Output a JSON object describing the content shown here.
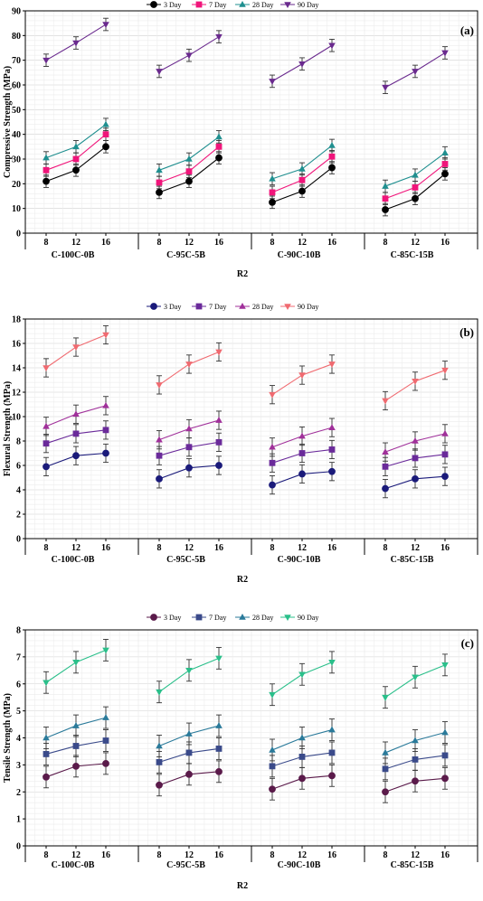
{
  "chart_data": [
    {
      "type": "line",
      "panel_label": "(a)",
      "ylabel": "Compressive Strength (MPa)",
      "xlabel": "R2",
      "ylim": [
        0,
        90
      ],
      "yticks": [
        "0",
        "10",
        "20",
        "30",
        "40",
        "50",
        "60",
        "70",
        "80",
        "90"
      ],
      "grid": true,
      "legend_position": "top-center",
      "groups": [
        {
          "name": "C-100C-0B",
          "ticks": [
            "8",
            "12",
            "16"
          ]
        },
        {
          "name": "C-95C-5B",
          "ticks": [
            "8",
            "12",
            "16"
          ]
        },
        {
          "name": "C-90C-10B",
          "ticks": [
            "8",
            "12",
            "16"
          ]
        },
        {
          "name": "C-85C-15B",
          "ticks": [
            "8",
            "12",
            "16"
          ]
        }
      ],
      "series": [
        {
          "name": "3 Day",
          "marker": "circle",
          "color": "#000000",
          "values": [
            [
              21,
              25.5,
              35
            ],
            [
              16.5,
              21,
              30.5
            ],
            [
              12.5,
              17,
              26.5
            ],
            [
              9.5,
              14,
              24
            ]
          ]
        },
        {
          "name": "7 Day",
          "marker": "square",
          "color": "#f0157a",
          "values": [
            [
              25.5,
              30,
              40
            ],
            [
              20.5,
              25,
              35
            ],
            [
              16.5,
              21.5,
              31
            ],
            [
              14,
              18.5,
              28
            ]
          ]
        },
        {
          "name": "28 Day",
          "marker": "triangle-up",
          "color": "#1f8f8f",
          "values": [
            [
              30.5,
              35,
              44
            ],
            [
              25.5,
              30,
              39
            ],
            [
              22,
              26,
              35.5
            ],
            [
              19,
              23.5,
              32.5
            ]
          ]
        },
        {
          "name": "90 Day",
          "marker": "triangle-down",
          "color": "#6a2a8e",
          "values": [
            [
              70,
              77,
              84.5
            ],
            [
              65.5,
              72,
              79.5
            ],
            [
              61.5,
              68.5,
              76
            ],
            [
              59,
              65.5,
              73
            ]
          ]
        }
      ],
      "error": 2.5
    },
    {
      "type": "line",
      "panel_label": "(b)",
      "ylabel": "Flexural Strength (MPa)",
      "xlabel": "R2",
      "ylim": [
        0,
        18
      ],
      "yticks": [
        "0",
        "2",
        "4",
        "6",
        "8",
        "10",
        "12",
        "14",
        "16",
        "18"
      ],
      "grid": true,
      "legend_position": "top-center",
      "groups": [
        {
          "name": "C-100C-0B",
          "ticks": [
            "8",
            "12",
            "16"
          ]
        },
        {
          "name": "C-95C-5B",
          "ticks": [
            "8",
            "12",
            "16"
          ]
        },
        {
          "name": "C-90C-10B",
          "ticks": [
            "8",
            "12",
            "16"
          ]
        },
        {
          "name": "C-85C-15B",
          "ticks": [
            "8",
            "12",
            "16"
          ]
        }
      ],
      "series": [
        {
          "name": "3 Day",
          "marker": "circle",
          "color": "#1a1a7a",
          "values": [
            [
              5.9,
              6.8,
              7.0
            ],
            [
              4.9,
              5.8,
              6.0
            ],
            [
              4.4,
              5.3,
              5.5
            ],
            [
              4.1,
              4.9,
              5.1
            ]
          ]
        },
        {
          "name": "7 Day",
          "marker": "square",
          "color": "#6a2a9a",
          "values": [
            [
              7.8,
              8.6,
              8.9
            ],
            [
              6.8,
              7.5,
              7.9
            ],
            [
              6.2,
              7.0,
              7.3
            ],
            [
              5.9,
              6.6,
              6.9
            ]
          ]
        },
        {
          "name": "28 Day",
          "marker": "triangle-up",
          "color": "#a0309a",
          "values": [
            [
              9.2,
              10.2,
              10.9
            ],
            [
              8.1,
              9.0,
              9.7
            ],
            [
              7.5,
              8.4,
              9.1
            ],
            [
              7.1,
              8.0,
              8.6
            ]
          ]
        },
        {
          "name": "90 Day",
          "marker": "triangle-down",
          "color": "#f06a70",
          "values": [
            [
              14.0,
              15.7,
              16.7
            ],
            [
              12.6,
              14.3,
              15.3
            ],
            [
              11.8,
              13.4,
              14.3
            ],
            [
              11.3,
              12.9,
              13.8
            ]
          ]
        }
      ],
      "error": 0.75
    },
    {
      "type": "line",
      "panel_label": "(c)",
      "ylabel": "Tensile Strength (MPa)",
      "xlabel": "R2",
      "ylim": [
        0,
        8
      ],
      "yticks": [
        "0",
        "1",
        "2",
        "3",
        "4",
        "5",
        "6",
        "7",
        "8"
      ],
      "grid": true,
      "legend_position": "top-center",
      "groups": [
        {
          "name": "C-100C-0B",
          "ticks": [
            "8",
            "12",
            "16"
          ]
        },
        {
          "name": "C-95C-5B",
          "ticks": [
            "8",
            "12",
            "16"
          ]
        },
        {
          "name": "C-90C-10B",
          "ticks": [
            "8",
            "12",
            "16"
          ]
        },
        {
          "name": "C-85C-15B",
          "ticks": [
            "8",
            "12",
            "16"
          ]
        }
      ],
      "series": [
        {
          "name": "3 Day",
          "marker": "circle",
          "color": "#5a1a4a",
          "values": [
            [
              2.55,
              2.95,
              3.05
            ],
            [
              2.25,
              2.65,
              2.75
            ],
            [
              2.1,
              2.5,
              2.6
            ],
            [
              2.0,
              2.4,
              2.5
            ]
          ]
        },
        {
          "name": "7 Day",
          "marker": "square",
          "color": "#3a4a8a",
          "values": [
            [
              3.4,
              3.7,
              3.9
            ],
            [
              3.1,
              3.45,
              3.6
            ],
            [
              2.95,
              3.3,
              3.45
            ],
            [
              2.85,
              3.2,
              3.35
            ]
          ]
        },
        {
          "name": "28 Day",
          "marker": "triangle-up",
          "color": "#2a7a9a",
          "values": [
            [
              4.0,
              4.45,
              4.75
            ],
            [
              3.7,
              4.15,
              4.45
            ],
            [
              3.55,
              4.0,
              4.3
            ],
            [
              3.45,
              3.9,
              4.2
            ]
          ]
        },
        {
          "name": "90 Day",
          "marker": "triangle-down",
          "color": "#2abf8a",
          "values": [
            [
              6.05,
              6.8,
              7.25
            ],
            [
              5.7,
              6.5,
              6.95
            ],
            [
              5.6,
              6.35,
              6.8
            ],
            [
              5.5,
              6.25,
              6.7
            ]
          ]
        }
      ],
      "error": 0.4
    }
  ]
}
